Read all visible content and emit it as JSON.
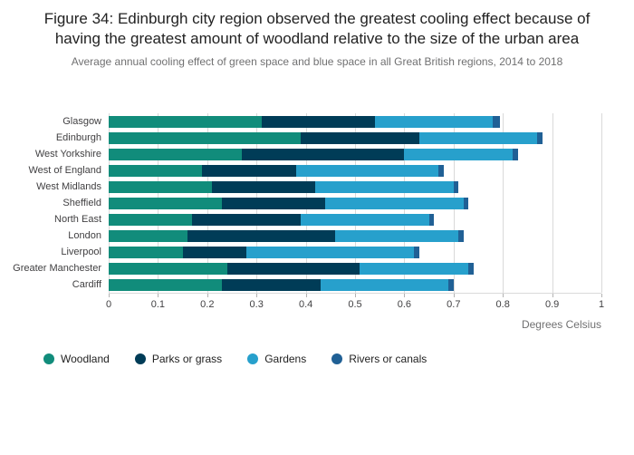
{
  "chart_data": {
    "type": "bar",
    "orientation": "horizontal",
    "stacked": true,
    "title": "Figure 34: Edinburgh city region observed the greatest cooling effect because of having the greatest amount of woodland relative to the size of the urban area",
    "subtitle": "Average annual cooling effect of green space and blue space in all Great British regions, 2014 to 2018",
    "xlabel": "Degrees Celsius",
    "xlim": [
      0,
      1
    ],
    "xticks": [
      0,
      0.1,
      0.2,
      0.3,
      0.4,
      0.5,
      0.6,
      0.7,
      0.8,
      0.9,
      1
    ],
    "xtick_labels": [
      "0",
      "0.1",
      "0.2",
      "0.3",
      "0.4",
      "0.5",
      "0.6",
      "0.7",
      "0.8",
      "0.9",
      "1"
    ],
    "grid": true,
    "legend_position": "bottom-left",
    "categories": [
      "Glasgow",
      "Edinburgh",
      "West Yorkshire",
      "West of England",
      "West Midlands",
      "Sheffield",
      "North East",
      "London",
      "Liverpool",
      "Greater Manchester",
      "Cardiff"
    ],
    "series": [
      {
        "name": "Woodland",
        "color": "#118C7B",
        "values": [
          0.31,
          0.39,
          0.27,
          0.19,
          0.21,
          0.23,
          0.17,
          0.16,
          0.15,
          0.24,
          0.23
        ]
      },
      {
        "name": "Parks or grass",
        "color": "#003C57",
        "values": [
          0.23,
          0.24,
          0.33,
          0.19,
          0.21,
          0.21,
          0.22,
          0.3,
          0.13,
          0.27,
          0.2
        ]
      },
      {
        "name": "Gardens",
        "color": "#27A0CC",
        "values": [
          0.24,
          0.24,
          0.22,
          0.29,
          0.28,
          0.28,
          0.26,
          0.25,
          0.34,
          0.22,
          0.26
        ]
      },
      {
        "name": "Rivers or canals",
        "color": "#206095",
        "values": [
          0.015,
          0.01,
          0.01,
          0.01,
          0.01,
          0.01,
          0.01,
          0.01,
          0.01,
          0.01,
          0.01
        ]
      }
    ]
  }
}
